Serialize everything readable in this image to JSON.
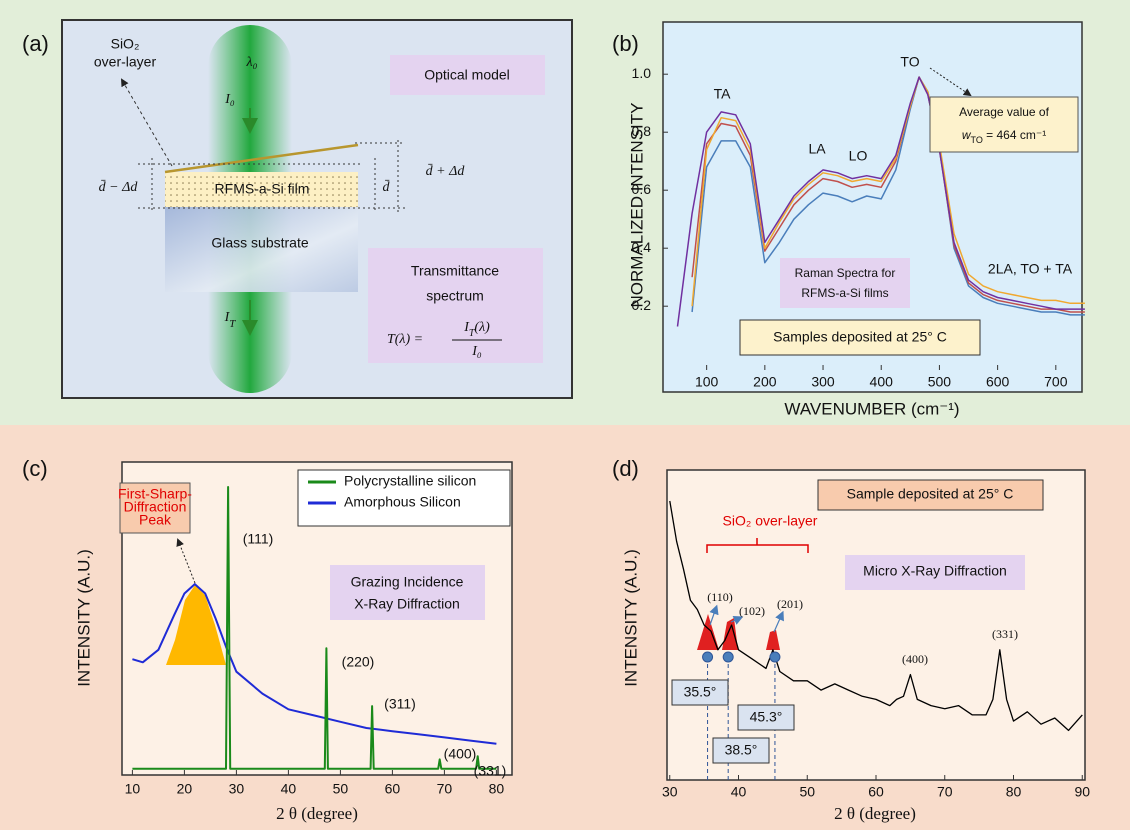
{
  "diagram": {
    "label": "(a)",
    "title": "Optical model",
    "overlayer": [
      "SiO₂",
      "over-layer"
    ],
    "wavelength": "λ₀",
    "incident": "I₀",
    "thickness_min": "d̄ − Δd",
    "thickness_mean": "d̄",
    "thickness_max": "d̄ + Δd",
    "film": "RFMS-a-Si film",
    "substrate": "Glass substrate",
    "transmitted": {
      "symbol": "I",
      "subscript": "T"
    },
    "caption": [
      "Transmittance",
      "spectrum"
    ],
    "formula": {
      "lhs": "T(λ) =",
      "numerator": {
        "symbol": "I",
        "subscript": "T",
        "rest": "(λ)"
      },
      "denominator": "I₀"
    }
  },
  "chart_data": [
    {
      "type": "line",
      "label": "(b)",
      "xlabel": "WAVENUMBER (cm⁻¹)",
      "ylabel": "NORMALIZED INTENSITY",
      "x": [
        50,
        75,
        100,
        125,
        150,
        175,
        200,
        225,
        250,
        275,
        300,
        325,
        350,
        375,
        400,
        425,
        450,
        465,
        480,
        500,
        525,
        550,
        575,
        600,
        625,
        650,
        675,
        700,
        725,
        750
      ],
      "xlim": [
        25,
        745
      ],
      "ylim": [
        -0.02,
        1.18
      ],
      "xticks": [
        100,
        200,
        300,
        400,
        500,
        600,
        700
      ],
      "yticks": [
        0.2,
        0.4,
        0.6,
        0.8,
        {
          "value": 1,
          "label": "1.0"
        }
      ],
      "series": [
        {
          "color": "#7030a0",
          "values": [
            0.13,
            0.52,
            0.8,
            0.87,
            0.86,
            0.76,
            0.42,
            0.5,
            0.58,
            0.63,
            0.67,
            0.66,
            0.64,
            0.65,
            0.64,
            0.72,
            0.9,
            0.99,
            0.93,
            0.74,
            0.42,
            0.29,
            0.25,
            0.23,
            0.22,
            0.21,
            0.2,
            0.19,
            0.19,
            0.19
          ]
        },
        {
          "color": "#f0a830",
          "values": [
            null,
            0.2,
            0.74,
            0.85,
            0.84,
            0.74,
            0.4,
            0.49,
            0.57,
            0.62,
            0.66,
            0.65,
            0.63,
            0.64,
            0.63,
            0.71,
            0.89,
            0.99,
            0.94,
            0.76,
            0.45,
            0.31,
            0.27,
            0.25,
            0.24,
            0.23,
            0.22,
            0.22,
            0.21,
            0.21
          ]
        },
        {
          "color": "#c0504d",
          "values": [
            null,
            0.3,
            0.76,
            0.83,
            0.82,
            0.72,
            0.39,
            0.47,
            0.55,
            0.6,
            0.64,
            0.63,
            0.61,
            0.62,
            0.61,
            0.7,
            0.89,
            0.99,
            0.93,
            0.74,
            0.41,
            0.28,
            0.24,
            0.22,
            0.21,
            0.2,
            0.19,
            0.19,
            0.18,
            0.18
          ]
        },
        {
          "color": "#4a7ebb",
          "values": [
            null,
            0.18,
            0.68,
            0.77,
            0.77,
            0.68,
            0.35,
            0.42,
            0.5,
            0.55,
            0.59,
            0.58,
            0.56,
            0.58,
            0.57,
            0.67,
            0.88,
            0.99,
            0.94,
            0.75,
            0.4,
            0.27,
            0.23,
            0.21,
            0.2,
            0.19,
            0.18,
            0.18,
            0.17,
            0.17
          ]
        }
      ],
      "annotations": [
        "TA",
        "LA",
        "LO",
        "TO",
        "2LA, TO + TA"
      ],
      "callout": {
        "line1": "Average value of",
        "symbol": "w",
        "subscript": "TO",
        "rest": " = 464 cm⁻¹"
      },
      "legend_note": [
        "Raman Spectra for",
        "RFMS-a-Si films"
      ],
      "note": "Samples deposited at 25° C"
    },
    {
      "type": "line",
      "label": "(c)",
      "xlabel": "2 θ (degree)",
      "ylabel": "INTENSITY (A.U.)",
      "xlim": [
        8,
        83
      ],
      "ylim": [
        0,
        100
      ],
      "xticks": [
        10,
        20,
        30,
        40,
        50,
        60,
        70,
        80
      ],
      "legend": "upper right",
      "series": [
        {
          "name": "Polycrystalline silicon",
          "color": "#1a8a1a",
          "x": [
            10,
            28.0,
            28.4,
            28.8,
            47.0,
            47.3,
            47.6,
            55.8,
            56.1,
            56.4,
            68.8,
            69.1,
            69.4,
            76.1,
            76.4,
            76.7,
            80
          ],
          "values": [
            2,
            2,
            92,
            2,
            2,
            40.5,
            2,
            2,
            22,
            2,
            2,
            5,
            2,
            2,
            6,
            2,
            2
          ]
        },
        {
          "name": "Amorphous Silicon",
          "color": "#1f2bd6",
          "x": [
            10,
            12,
            15,
            18,
            20,
            22,
            24,
            26,
            28,
            30,
            35,
            40,
            45,
            50,
            55,
            60,
            65,
            70,
            75,
            80
          ],
          "values": [
            37,
            36,
            40,
            51,
            58,
            61,
            58,
            50,
            41,
            33,
            26,
            21,
            19,
            17,
            15,
            14,
            13,
            12,
            11,
            10
          ]
        }
      ],
      "annotations": [
        "(111)",
        "(220)",
        "(311)",
        "(400)",
        "(331)"
      ],
      "fsdp": [
        "First-Sharp-",
        "Diffraction",
        "Peak"
      ],
      "method": [
        "Grazing Incidence",
        "X-Ray Diffraction"
      ]
    },
    {
      "type": "line",
      "label": "(d)",
      "xlabel": "2 θ (degree)",
      "ylabel": "INTENSITY (A.U.)",
      "xlim": [
        29.6,
        90.4
      ],
      "ylim": [
        0,
        100
      ],
      "xticks": [
        30,
        40,
        50,
        60,
        70,
        80,
        90
      ],
      "series": [
        {
          "color": "#000000",
          "x": [
            30,
            31,
            32,
            33,
            34,
            35,
            36,
            37,
            38,
            39,
            40,
            42,
            44,
            45,
            46,
            48,
            50,
            52,
            54,
            56,
            58,
            60,
            62,
            63,
            64,
            65,
            66,
            68,
            70,
            72,
            74,
            76,
            77,
            78,
            79,
            80,
            82,
            84,
            86,
            88,
            90
          ],
          "values": [
            90,
            77,
            68,
            58,
            55,
            50,
            48,
            42,
            45,
            50,
            42,
            39,
            36,
            42,
            35,
            32,
            32,
            29,
            31,
            29,
            27,
            26,
            24,
            26,
            27,
            34,
            26,
            24,
            23,
            24,
            21,
            21,
            26,
            42,
            26,
            19,
            22,
            18,
            20,
            16,
            21
          ]
        }
      ],
      "peaks": [
        {
          "value": 35.5,
          "label": "35.5°"
        },
        {
          "value": 38.5,
          "label": "38.5°"
        },
        {
          "value": 45.3,
          "label": "45.3°"
        }
      ],
      "annotations": [
        "(110)",
        "(102)",
        "(201)",
        "(400)",
        "(331)"
      ],
      "note": "Sample deposited at 25° C",
      "overlayer": "SiO₂ over-layer",
      "method": "Micro X-Ray Diffraction"
    }
  ]
}
